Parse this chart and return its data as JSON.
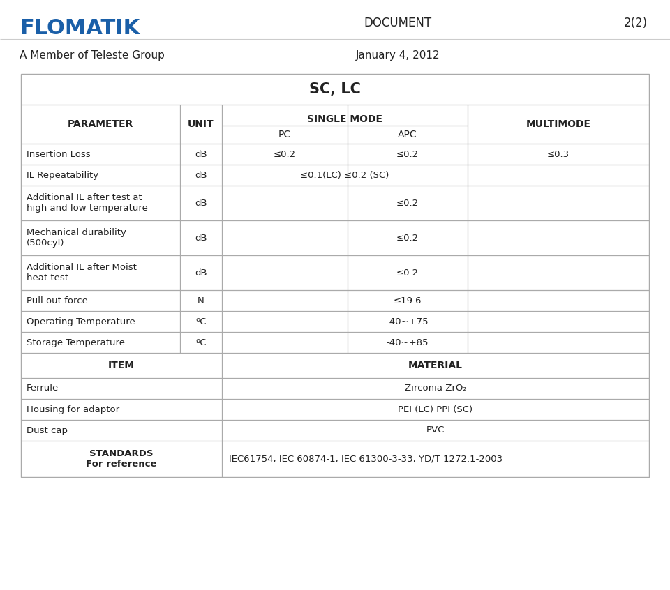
{
  "logo_text": "FLOMATIK",
  "logo_color": "#1a5fa8",
  "doc_label": "DOCUMENT",
  "doc_number": "2(2)",
  "member_text": "A Member of Teleste Group",
  "date_text": "January 4, 2012",
  "table_title": "SC, LC",
  "subheader": "SINGLE MODE",
  "rows": [
    [
      "Insertion Loss",
      "dB",
      "≤0.2",
      "≤0.2",
      "≤0.3"
    ],
    [
      "IL Repeatability",
      "dB",
      "",
      "≤0.1(LC) ≤0.2 (SC)",
      ""
    ],
    [
      "Additional IL after test at\nhigh and low temperature",
      "dB",
      "",
      "≤0.2",
      ""
    ],
    [
      "Mechanical durability\n(500cyl)",
      "dB",
      "",
      "≤0.2",
      ""
    ],
    [
      "Additional IL after Moist\nheat test",
      "dB",
      "",
      "≤0.2",
      ""
    ],
    [
      "Pull out force",
      "N",
      "",
      "≤19.6",
      ""
    ],
    [
      "Operating Temperature",
      "ºC",
      "",
      "-40~+75",
      ""
    ],
    [
      "Storage Temperature",
      "ºC",
      "",
      "-40~+85",
      ""
    ]
  ],
  "item_header": "ITEM",
  "material_header": "MATERIAL",
  "items": [
    [
      "Ferrule",
      "Zirconia ZrO₂"
    ],
    [
      "Housing for adaptor",
      "PEI (LC) PPI (SC)"
    ],
    [
      "Dust cap",
      "PVC"
    ]
  ],
  "standards_label": "STANDARDS\nFor reference",
  "standards_value": "IEC61754, IEC 60874-1, IEC 61300-3-33, YD/T 1272.1-2003",
  "bg_color": "#ffffff",
  "line_color": "#aaaaaa",
  "text_color": "#222222"
}
